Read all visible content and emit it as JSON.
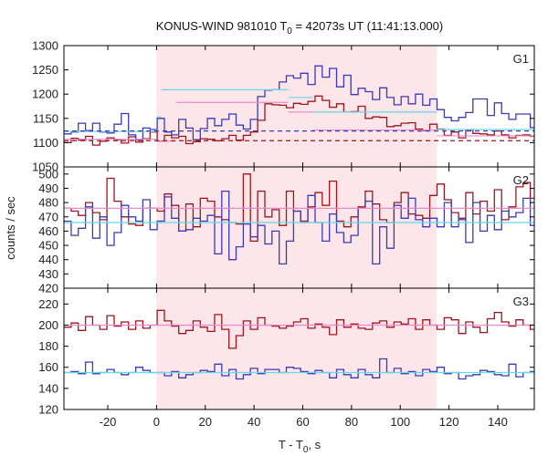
{
  "chart_data": {
    "type": "line",
    "title": "KONUS-WIND 981010 T",
    "title_sub": "0",
    "title_rest": " = 42073s UT (11:41:13.000)",
    "xlabel": "T - T",
    "xlabel_sub": "0",
    "xlabel_rest": ", s",
    "ylabel": "counts / sec",
    "xlim": [
      -38,
      155
    ],
    "xticks": [
      -20,
      0,
      20,
      40,
      60,
      80,
      100,
      120,
      140
    ],
    "highlight": {
      "x0": 0,
      "x1": 115,
      "color": "#fde6e9"
    },
    "colors": {
      "red": "#a0141e",
      "blue": "#3a3ab8",
      "pink": "#ee88cc",
      "cyan": "#66d8e8"
    },
    "bin_width": 2.944,
    "x_start": -38,
    "panels": [
      {
        "label": "G1",
        "ylim": [
          1050,
          1300
        ],
        "yticks": [
          1050,
          1100,
          1150,
          1200,
          1250,
          1300
        ],
        "series": [
          {
            "color": "red",
            "values": [
              1100,
              1109,
              1105,
              1113,
              1095,
              1103,
              1110,
              1106,
              1099,
              1112,
              1101,
              1108,
              1122,
              1103,
              1115,
              1110,
              1113,
              1098,
              1102,
              1108,
              1107,
              1104,
              1108,
              1115,
              1105,
              1115,
              1122,
              1146,
              1180,
              1178,
              1177,
              1172,
              1181,
              1179,
              1185,
              1196,
              1187,
              1173,
              1180,
              1163,
              1164,
              1175,
              1150,
              1153,
              1152,
              1133,
              1135,
              1140,
              1141,
              1128,
              1125,
              1138,
              1128,
              1115,
              1122,
              1110,
              1126,
              1119,
              1118,
              1116,
              1124,
              1116,
              1110,
              1115,
              1116,
              1113,
              1118,
              1102,
              1096,
              1098,
              1107,
              1110,
              1116,
              1105,
              1098,
              1104,
              1113,
              1115,
              1113,
              1118,
              1108
            ]
          },
          {
            "color": "blue",
            "values": [
              1118,
              1122,
              1140,
              1125,
              1140,
              1122,
              1120,
              1138,
              1160,
              1116,
              1106,
              1130,
              1127,
              1150,
              1122,
              1116,
              1148,
              1130,
              1106,
              1129,
              1150,
              1135,
              1148,
              1159,
              1136,
              1128,
              1148,
              1195,
              1208,
              1209,
              1225,
              1238,
              1233,
              1243,
              1220,
              1258,
              1235,
              1253,
              1215,
              1239,
              1199,
              1212,
              1205,
              1189,
              1213,
              1193,
              1178,
              1195,
              1180,
              1200,
              1177,
              1190,
              1168,
              1152,
              1145,
              1152,
              1162,
              1190,
              1190,
              1156,
              1182,
              1160,
              1148,
              1159,
              1159,
              1131,
              1158,
              1135,
              1149,
              1146,
              1132,
              1118,
              1151,
              1165,
              1157,
              1152,
              1127,
              1138,
              1150,
              1159,
              1154
            ]
          },
          {
            "color": "pink",
            "dashed": false,
            "segments": [
              [
                -38,
                0,
                1107
              ],
              [
                0,
                8,
                1103
              ],
              [
                8,
                54,
                1183
              ],
              [
                54,
                64,
                1163
              ],
              [
                64,
                115,
                1126
              ],
              [
                115,
                155,
                1114
              ]
            ]
          },
          {
            "color": "cyan",
            "dashed": false,
            "segments": [
              [
                -38,
                0,
                1123
              ],
              [
                0,
                2,
                1153
              ],
              [
                2,
                54,
                1209
              ],
              [
                54,
                64,
                1193
              ],
              [
                64,
                115,
                1163
              ],
              [
                115,
                155,
                1127
              ]
            ]
          },
          {
            "color": "blue",
            "dashed": true,
            "segments": [
              [
                -38,
                155,
                1124
              ]
            ]
          },
          {
            "color": "red",
            "dashed": true,
            "segments": [
              [
                -38,
                155,
                1104
              ]
            ]
          }
        ]
      },
      {
        "label": "G2",
        "ylim": [
          420,
          505
        ],
        "yticks": [
          420,
          430,
          440,
          450,
          460,
          470,
          480,
          490,
          500
        ],
        "series": [
          {
            "color": "red",
            "values": [
              476,
              474,
              471,
              480,
              473,
              468,
              497,
              481,
              470,
              465,
              464,
              476,
              476,
              474,
              486,
              478,
              460,
              479,
              463,
              483,
              481,
              470,
              468,
              466,
              465,
              500,
              453,
              488,
              470,
              475,
              464,
              488,
              474,
              467,
              477,
              487,
              478,
              495,
              467,
              463,
              470,
              477,
              488,
              479,
              468,
              466,
              480,
              487,
              472,
              471,
              469,
              485,
              493,
              482,
              473,
              468,
              487,
              472,
              481,
              474,
              489,
              468,
              477,
              491,
              494,
              483,
              473,
              458,
              480,
              476,
              466,
              478,
              479,
              492,
              456,
              468,
              479,
              490,
              481,
              470,
              476
            ]
          },
          {
            "color": "blue",
            "values": [
              467,
              457,
              462,
              477,
              455,
              470,
              450,
              459,
              478,
              470,
              467,
              482,
              461,
              467,
              484,
              469,
              460,
              461,
              469,
              467,
              471,
              444,
              488,
              440,
              449,
              465,
              456,
              464,
              451,
              460,
              437,
              453,
              474,
              466,
              485,
              466,
              453,
              472,
              459,
              452,
              457,
              476,
              481,
              437,
              463,
              448,
              478,
              469,
              483,
              468,
              463,
              469,
              463,
              480,
              463,
              469,
              452,
              480,
              460,
              471,
              461,
              474,
              470,
              473,
              483,
              464,
              461,
              472,
              465,
              449,
              478,
              466,
              471,
              468,
              477,
              460,
              455,
              474,
              456,
              468,
              480
            ]
          },
          {
            "color": "pink",
            "dashed": false,
            "segments": [
              [
                -38,
                155,
                476
              ]
            ]
          },
          {
            "color": "cyan",
            "dashed": false,
            "segments": [
              [
                -38,
                155,
                466
              ]
            ]
          }
        ]
      },
      {
        "label": "G3",
        "ylim": [
          120,
          235
        ],
        "yticks": [
          120,
          140,
          160,
          180,
          200,
          220
        ],
        "series": [
          {
            "color": "red",
            "values": [
              198,
              202,
              195,
              208,
              200,
              196,
              209,
              199,
              203,
              196,
              204,
              197,
              200,
              214,
              204,
              199,
              192,
              195,
              204,
              198,
              194,
              210,
              196,
              178,
              190,
              204,
              196,
              207,
              200,
              199,
              197,
              199,
              203,
              206,
              197,
              201,
              198,
              191,
              205,
              198,
              201,
              197,
              196,
              202,
              204,
              198,
              203,
              201,
              206,
              196,
              205,
              200,
              196,
              207,
              205,
              192,
              203,
              198,
              193,
              206,
              212,
              203,
              199,
              205,
              200,
              196,
              208,
              204,
              202,
              203,
              196,
              215,
              207,
              211,
              213,
              206,
              202,
              207,
              199,
              208,
              205,
              214,
              205
            ]
          },
          {
            "color": "blue",
            "values": [
              155,
              156,
              154,
              165,
              154,
              155,
              158,
              155,
              153,
              155,
              160,
              157,
              155,
              155,
              152,
              156,
              150,
              153,
              155,
              157,
              156,
              163,
              152,
              158,
              149,
              153,
              159,
              154,
              158,
              158,
              155,
              160,
              159,
              156,
              154,
              157,
              155,
              150,
              158,
              153,
              150,
              158,
              153,
              150,
              168,
              155,
              159,
              154,
              156,
              152,
              158,
              156,
              160,
              154,
              155,
              149,
              152,
              153,
              157,
              156,
              153,
              152,
              163,
              151,
              155,
              156,
              153,
              157,
              155,
              161,
              155,
              152,
              158,
              156,
              157,
              153,
              154,
              150,
              157,
              153,
              155,
              160,
              156
            ]
          },
          {
            "color": "pink",
            "dashed": false,
            "segments": [
              [
                -38,
                155,
                200
              ]
            ]
          },
          {
            "color": "cyan",
            "dashed": false,
            "segments": [
              [
                -38,
                155,
                155
              ]
            ]
          }
        ]
      }
    ]
  }
}
